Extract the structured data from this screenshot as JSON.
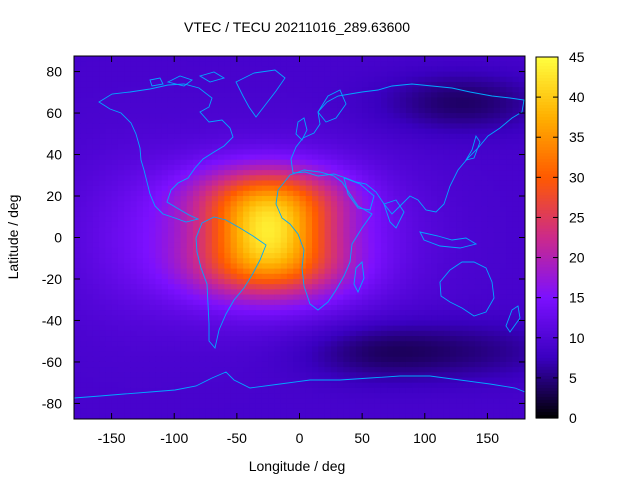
{
  "chart_data": {
    "type": "heatmap",
    "title": "VTEC / TECU 20211016_289.63600",
    "xlabel": "Longitude / deg",
    "ylabel": "Latitude / deg",
    "xlim": [
      -180,
      180
    ],
    "ylim": [
      -87.5,
      87.5
    ],
    "x_ticks": [
      -150,
      -100,
      -50,
      0,
      50,
      100,
      150
    ],
    "y_ticks": [
      -80,
      -60,
      -40,
      -20,
      0,
      20,
      40,
      60,
      80
    ],
    "colorbar": {
      "range": [
        0,
        45
      ],
      "ticks": [
        0,
        5,
        10,
        15,
        20,
        25,
        30,
        35,
        40,
        45
      ],
      "palette": [
        "#000000",
        "#3a00c0",
        "#7c10ff",
        "#cc2a8a",
        "#ff5a00",
        "#ffb000",
        "#ffff40"
      ]
    },
    "background_level": 9,
    "features": [
      {
        "name": "equatorial-anomaly-peak",
        "lon": -25,
        "lat": 3,
        "value": 43
      },
      {
        "name": "crest-north",
        "lon": -25,
        "lat": 20,
        "value": 35
      },
      {
        "name": "crest-south",
        "lon": -25,
        "lat": -15,
        "value": 34
      },
      {
        "name": "low-arctic-east",
        "lon": 130,
        "lat": 65,
        "value": 4
      },
      {
        "name": "low-south-ocean",
        "lon": 65,
        "lat": -55,
        "value": 4
      },
      {
        "name": "low-antarctic",
        "lon": 150,
        "lat": -55,
        "value": 6
      }
    ],
    "coastline_color": "#00a8ff"
  }
}
